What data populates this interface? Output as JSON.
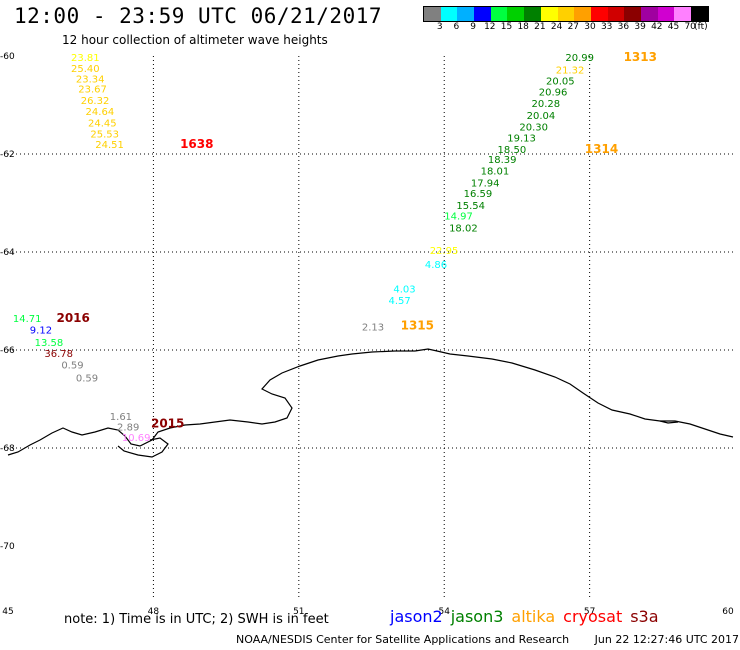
{
  "title": "12:00 - 23:59 UTC 06/21/2017",
  "subtitle": "12 hour collection of altimeter wave heights",
  "colorbar": {
    "colors": [
      "#808080",
      "#00ffff",
      "#00b0ff",
      "#0000ff",
      "#00ff40",
      "#00d000",
      "#008000",
      "#ffff00",
      "#ffd000",
      "#ffa000",
      "#ff0000",
      "#d00000",
      "#8b0000",
      "#a000a0",
      "#d000d0",
      "#ff80ff",
      "#000000"
    ],
    "labels": [
      "3",
      "6",
      "9",
      "12",
      "15",
      "18",
      "21",
      "24",
      "27",
      "30",
      "33",
      "36",
      "39",
      "42",
      "45",
      "70",
      "(ft)"
    ]
  },
  "axes": {
    "lat_ticks": [
      "-60",
      "-62",
      "-64",
      "-66",
      "-68",
      "-70"
    ],
    "lon_ticks": [
      "45",
      "48",
      "51",
      "54",
      "57",
      "60"
    ]
  },
  "pass_labels": [
    {
      "text": "1313",
      "color": "#ffa000",
      "lon": 57.7,
      "lat": -60.02
    },
    {
      "text": "1314",
      "color": "#ffa000",
      "lon": 56.9,
      "lat": -61.9
    },
    {
      "text": "1315",
      "color": "#ffa000",
      "lon": 53.1,
      "lat": -65.5
    },
    {
      "text": "1638",
      "color": "#ff0000",
      "lon": 48.55,
      "lat": -61.8
    },
    {
      "text": "2016",
      "color": "#8b0000",
      "lon": 46.0,
      "lat": -65.35
    },
    {
      "text": "2015",
      "color": "#8b0000",
      "lon": 47.95,
      "lat": -67.5
    }
  ],
  "measurements": [
    {
      "v": "20.99",
      "c": "#008000",
      "lon": 56.5,
      "lat": -60.02
    },
    {
      "v": "21.32",
      "c": "#ffd000",
      "lon": 56.3,
      "lat": -60.28
    },
    {
      "v": "20.05",
      "c": "#008000",
      "lon": 56.1,
      "lat": -60.5
    },
    {
      "v": "20.96",
      "c": "#008000",
      "lon": 55.95,
      "lat": -60.72
    },
    {
      "v": "20.28",
      "c": "#008000",
      "lon": 55.8,
      "lat": -60.96
    },
    {
      "v": "20.04",
      "c": "#008000",
      "lon": 55.7,
      "lat": -61.2
    },
    {
      "v": "20.30",
      "c": "#008000",
      "lon": 55.55,
      "lat": -61.44
    },
    {
      "v": "19.13",
      "c": "#008000",
      "lon": 55.3,
      "lat": -61.66
    },
    {
      "v": "18.50",
      "c": "#008000",
      "lon": 55.1,
      "lat": -61.9
    },
    {
      "v": "18.39",
      "c": "#008000",
      "lon": 54.9,
      "lat": -62.1
    },
    {
      "v": "18.01",
      "c": "#008000",
      "lon": 54.75,
      "lat": -62.34
    },
    {
      "v": "17.94",
      "c": "#008000",
      "lon": 54.55,
      "lat": -62.58
    },
    {
      "v": "16.59",
      "c": "#008000",
      "lon": 54.4,
      "lat": -62.8
    },
    {
      "v": "15.54",
      "c": "#008000",
      "lon": 54.25,
      "lat": -63.04
    },
    {
      "v": "14.97",
      "c": "#00ff40",
      "lon": 54.0,
      "lat": -63.26
    },
    {
      "v": "18.02",
      "c": "#008000",
      "lon": 54.1,
      "lat": -63.5
    },
    {
      "v": "22.95",
      "c": "#ffff00",
      "lon": 53.7,
      "lat": -63.96
    },
    {
      "v": "4.86",
      "c": "#00ffff",
      "lon": 53.6,
      "lat": -64.24
    },
    {
      "v": "4.03",
      "c": "#00ffff",
      "lon": 52.95,
      "lat": -64.74
    },
    {
      "v": "4.57",
      "c": "#00ffff",
      "lon": 52.85,
      "lat": -64.98
    },
    {
      "v": "2.13",
      "c": "#808080",
      "lon": 52.3,
      "lat": -65.52
    },
    {
      "v": "23.81",
      "c": "#ffff00",
      "lon": 46.3,
      "lat": -60.02
    },
    {
      "v": "25.40",
      "c": "#ffd000",
      "lon": 46.3,
      "lat": -60.24
    },
    {
      "v": "23.34",
      "c": "#ffd000",
      "lon": 46.4,
      "lat": -60.46
    },
    {
      "v": "23.67",
      "c": "#ffd000",
      "lon": 46.45,
      "lat": -60.66
    },
    {
      "v": "26.32",
      "c": "#ffd000",
      "lon": 46.5,
      "lat": -60.9
    },
    {
      "v": "24.64",
      "c": "#ffd000",
      "lon": 46.6,
      "lat": -61.12
    },
    {
      "v": "24.45",
      "c": "#ffd000",
      "lon": 46.65,
      "lat": -61.36
    },
    {
      "v": "25.53",
      "c": "#ffd000",
      "lon": 46.7,
      "lat": -61.58
    },
    {
      "v": "24.51",
      "c": "#ffd000",
      "lon": 46.8,
      "lat": -61.8
    },
    {
      "v": "14.71",
      "c": "#00ff40",
      "lon": 45.1,
      "lat": -65.35
    },
    {
      "v": "9.12",
      "c": "#0000ff",
      "lon": 45.45,
      "lat": -65.58
    },
    {
      "v": "13.58",
      "c": "#00ff40",
      "lon": 45.55,
      "lat": -65.84
    },
    {
      "v": "36.78",
      "c": "#8b0000",
      "lon": 45.75,
      "lat": -66.06
    },
    {
      "v": "0.59",
      "c": "#808080",
      "lon": 46.1,
      "lat": -66.3
    },
    {
      "v": "0.59",
      "c": "#808080",
      "lon": 46.4,
      "lat": -66.56
    },
    {
      "v": "1.61",
      "c": "#808080",
      "lon": 47.1,
      "lat": -67.35
    },
    {
      "v": "2.89",
      "c": "#808080",
      "lon": 47.25,
      "lat": -67.56
    },
    {
      "v": "10.69",
      "c": "#ff80ff",
      "lon": 47.35,
      "lat": -67.78
    }
  ],
  "note": "note: 1) Time is in UTC; 2) SWH is in feet",
  "legend": [
    {
      "name": "jason2",
      "color": "#0000ff"
    },
    {
      "name": "jason3",
      "color": "#008000"
    },
    {
      "name": "altika",
      "color": "#ffa000"
    },
    {
      "name": "cryosat",
      "color": "#ff0000"
    },
    {
      "name": "s3a",
      "color": "#8b0000"
    }
  ],
  "credit": {
    "org": "NOAA/NESDIS Center for Satellite Applications and Research",
    "timestamp": "Jun 22 12:27:46 UTC 2017"
  }
}
